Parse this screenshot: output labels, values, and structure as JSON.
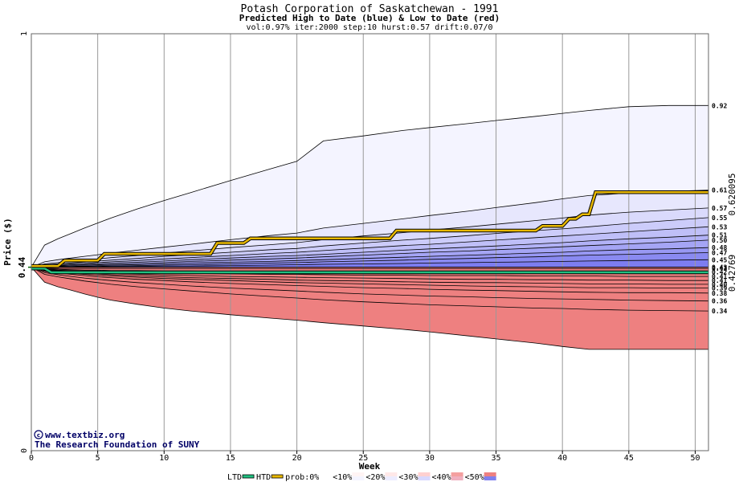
{
  "chart_data": {
    "type": "area",
    "title": "Potash Corporation of Saskatchewan  - 1991",
    "subtitle": "Predicted High to Date (blue) &  Low to Date (red)",
    "params_line": "vol:0.97% iter:2000 step:10 hurst:0.57 drift:0.07/0",
    "xlabel": "Week",
    "ylabel": "Price ($)",
    "xlim": [
      0,
      51
    ],
    "ylim": [
      0,
      1
    ],
    "x_ticks": [
      "0",
      "5",
      "10",
      "15",
      "20",
      "25",
      "30",
      "35",
      "40",
      "45",
      "50"
    ],
    "y_ticks": [
      "0",
      "1"
    ],
    "start_price_label": "0.44",
    "start_price": 0.44,
    "htd_final_label": "0.620095",
    "htd_final": 0.620095,
    "ltd_final_label": "0.42769",
    "ltd_final": 0.42769,
    "band_x": [
      0,
      1,
      2,
      3,
      4,
      5,
      6,
      8,
      10,
      12,
      15,
      18,
      20,
      22,
      25,
      28,
      30,
      33,
      35,
      38,
      40,
      42,
      45,
      48,
      51
    ],
    "blue_percentiles": [
      {
        "label": "0.92",
        "values": [
          0.44,
          0.493,
          0.508,
          0.521,
          0.534,
          0.546,
          0.558,
          0.58,
          0.6,
          0.619,
          0.648,
          0.676,
          0.694,
          0.743,
          0.755,
          0.768,
          0.775,
          0.785,
          0.792,
          0.802,
          0.809,
          0.816,
          0.825,
          0.828,
          0.828
        ]
      },
      {
        "label": "0.61",
        "values": [
          0.44,
          0.453,
          0.458,
          0.462,
          0.466,
          0.47,
          0.474,
          0.481,
          0.488,
          0.495,
          0.506,
          0.516,
          0.522,
          0.534,
          0.545,
          0.556,
          0.564,
          0.575,
          0.583,
          0.595,
          0.604,
          0.612,
          0.618,
          0.622,
          0.625
        ]
      },
      {
        "label": "0.57",
        "values": [
          0.44,
          0.448,
          0.451,
          0.454,
          0.457,
          0.46,
          0.463,
          0.468,
          0.474,
          0.479,
          0.487,
          0.494,
          0.499,
          0.506,
          0.515,
          0.523,
          0.529,
          0.537,
          0.543,
          0.552,
          0.558,
          0.565,
          0.572,
          0.577,
          0.582
        ]
      },
      {
        "label": "0.55",
        "values": [
          0.44,
          0.446,
          0.448,
          0.45,
          0.452,
          0.455,
          0.457,
          0.461,
          0.466,
          0.47,
          0.476,
          0.482,
          0.485,
          0.491,
          0.498,
          0.505,
          0.509,
          0.516,
          0.521,
          0.528,
          0.532,
          0.537,
          0.545,
          0.552,
          0.559
        ]
      },
      {
        "label": "0.53",
        "values": [
          0.44,
          0.444,
          0.446,
          0.448,
          0.449,
          0.451,
          0.453,
          0.456,
          0.46,
          0.463,
          0.468,
          0.473,
          0.476,
          0.48,
          0.486,
          0.492,
          0.495,
          0.501,
          0.505,
          0.511,
          0.515,
          0.519,
          0.525,
          0.531,
          0.537
        ]
      },
      {
        "label": "0.51",
        "values": [
          0.44,
          0.443,
          0.444,
          0.446,
          0.447,
          0.448,
          0.45,
          0.452,
          0.455,
          0.458,
          0.462,
          0.466,
          0.468,
          0.471,
          0.476,
          0.481,
          0.484,
          0.488,
          0.491,
          0.496,
          0.499,
          0.503,
          0.508,
          0.512,
          0.517
        ]
      },
      {
        "label": "0.50",
        "values": [
          0.44,
          0.442,
          0.443,
          0.444,
          0.445,
          0.446,
          0.447,
          0.449,
          0.451,
          0.454,
          0.457,
          0.46,
          0.462,
          0.465,
          0.469,
          0.473,
          0.476,
          0.479,
          0.482,
          0.486,
          0.489,
          0.492,
          0.496,
          0.5,
          0.505
        ]
      },
      {
        "label": "0.48",
        "values": [
          0.44,
          0.441,
          0.442,
          0.442,
          0.443,
          0.444,
          0.445,
          0.446,
          0.448,
          0.45,
          0.452,
          0.454,
          0.456,
          0.458,
          0.461,
          0.464,
          0.466,
          0.469,
          0.471,
          0.474,
          0.476,
          0.479,
          0.482,
          0.484,
          0.487
        ]
      },
      {
        "label": "0.47",
        "values": [
          0.44,
          0.44,
          0.441,
          0.441,
          0.442,
          0.442,
          0.443,
          0.444,
          0.445,
          0.446,
          0.448,
          0.45,
          0.451,
          0.453,
          0.455,
          0.457,
          0.459,
          0.461,
          0.463,
          0.465,
          0.467,
          0.469,
          0.471,
          0.473,
          0.475
        ]
      },
      {
        "label": "0.45",
        "values": [
          0.44,
          0.44,
          0.44,
          0.44,
          0.441,
          0.441,
          0.441,
          0.442,
          0.443,
          0.443,
          0.444,
          0.445,
          0.446,
          0.447,
          0.448,
          0.449,
          0.45,
          0.451,
          0.452,
          0.453,
          0.454,
          0.455,
          0.456,
          0.457,
          0.458
        ]
      },
      {
        "label": "0.43",
        "values": [
          0.44,
          0.44,
          0.44,
          0.44,
          0.44,
          0.44,
          0.44,
          0.44,
          0.44,
          0.44,
          0.44,
          0.44,
          0.44,
          0.44,
          0.44,
          0.44,
          0.44,
          0.44,
          0.44,
          0.44,
          0.44,
          0.44,
          0.44,
          0.44,
          0.44
        ]
      }
    ],
    "red_percentiles": [
      {
        "label": "0.43",
        "values": [
          0.44,
          0.438,
          0.437,
          0.437,
          0.437,
          0.437,
          0.437,
          0.437,
          0.437,
          0.437,
          0.437,
          0.437,
          0.437,
          0.437,
          0.437,
          0.437,
          0.437,
          0.437,
          0.437,
          0.437,
          0.437,
          0.437,
          0.437,
          0.437,
          0.437
        ]
      },
      {
        "label": "0.42",
        "values": [
          0.44,
          0.436,
          0.435,
          0.434,
          0.433,
          0.433,
          0.432,
          0.432,
          0.431,
          0.431,
          0.43,
          0.43,
          0.43,
          0.429,
          0.429,
          0.429,
          0.429,
          0.429,
          0.429,
          0.429,
          0.429,
          0.429,
          0.429,
          0.429,
          0.429
        ]
      },
      {
        "label": "0.41",
        "values": [
          0.44,
          0.435,
          0.433,
          0.432,
          0.43,
          0.429,
          0.428,
          0.427,
          0.426,
          0.425,
          0.424,
          0.423,
          0.423,
          0.422,
          0.421,
          0.421,
          0.42,
          0.42,
          0.42,
          0.419,
          0.419,
          0.419,
          0.418,
          0.418,
          0.418
        ]
      },
      {
        "label": "0.41",
        "values": [
          0.44,
          0.434,
          0.432,
          0.43,
          0.428,
          0.426,
          0.425,
          0.423,
          0.421,
          0.42,
          0.418,
          0.417,
          0.416,
          0.415,
          0.414,
          0.413,
          0.412,
          0.411,
          0.411,
          0.41,
          0.41,
          0.409,
          0.409,
          0.408,
          0.408
        ]
      },
      {
        "label": "0.40",
        "values": [
          0.44,
          0.433,
          0.43,
          0.428,
          0.426,
          0.424,
          0.422,
          0.419,
          0.417,
          0.415,
          0.413,
          0.411,
          0.409,
          0.408,
          0.407,
          0.405,
          0.404,
          0.403,
          0.403,
          0.402,
          0.401,
          0.4,
          0.4,
          0.399,
          0.399
        ]
      },
      {
        "label": "0.39",
        "values": [
          0.44,
          0.432,
          0.428,
          0.426,
          0.423,
          0.421,
          0.419,
          0.416,
          0.413,
          0.411,
          0.408,
          0.405,
          0.403,
          0.402,
          0.4,
          0.398,
          0.397,
          0.395,
          0.394,
          0.393,
          0.392,
          0.391,
          0.391,
          0.39,
          0.39
        ]
      },
      {
        "label": "0.38",
        "values": [
          0.44,
          0.43,
          0.426,
          0.423,
          0.42,
          0.417,
          0.415,
          0.411,
          0.408,
          0.405,
          0.401,
          0.398,
          0.396,
          0.394,
          0.391,
          0.389,
          0.387,
          0.385,
          0.384,
          0.382,
          0.381,
          0.38,
          0.379,
          0.379,
          0.378
        ]
      },
      {
        "label": "0.36",
        "values": [
          0.44,
          0.427,
          0.422,
          0.418,
          0.414,
          0.411,
          0.408,
          0.403,
          0.399,
          0.395,
          0.39,
          0.386,
          0.383,
          0.38,
          0.376,
          0.373,
          0.371,
          0.369,
          0.367,
          0.365,
          0.364,
          0.363,
          0.361,
          0.36,
          0.359
        ]
      },
      {
        "label": "0.34",
        "values": [
          0.44,
          0.423,
          0.417,
          0.412,
          0.407,
          0.403,
          0.399,
          0.393,
          0.388,
          0.383,
          0.376,
          0.37,
          0.366,
          0.362,
          0.357,
          0.353,
          0.35,
          0.347,
          0.345,
          0.342,
          0.341,
          0.339,
          0.337,
          0.336,
          0.335
        ]
      },
      {
        "label": "",
        "values": [
          0.44,
          0.404,
          0.393,
          0.385,
          0.376,
          0.368,
          0.361,
          0.351,
          0.342,
          0.335,
          0.326,
          0.318,
          0.313,
          0.307,
          0.299,
          0.291,
          0.285,
          0.275,
          0.268,
          0.258,
          0.25,
          0.243,
          0.243,
          0.243,
          0.243
        ]
      }
    ],
    "htd_path": {
      "x": [
        0,
        2,
        2.5,
        5,
        5.5,
        13.5,
        14,
        16,
        16.5,
        27,
        27.5,
        38,
        38.5,
        40,
        40.5,
        41,
        41.5,
        42,
        42.5,
        51
      ],
      "y": [
        0.443,
        0.443,
        0.456,
        0.456,
        0.472,
        0.472,
        0.498,
        0.498,
        0.509,
        0.509,
        0.528,
        0.528,
        0.539,
        0.539,
        0.556,
        0.556,
        0.567,
        0.567,
        0.620095,
        0.620095
      ]
    },
    "ltd_path": {
      "x": [
        0,
        1,
        1.5,
        51
      ],
      "y": [
        0.437,
        0.437,
        0.42769,
        0.42769
      ]
    },
    "legend": {
      "ltd": "LTD",
      "htd": "HTD",
      "prob_prefix": "prob:",
      "items": [
        "0%",
        "<10%",
        "<20%",
        "<30%",
        "<40%",
        "<50%"
      ]
    },
    "watermark_url": "www.textbiz.org",
    "watermark_org": "The Research Foundation of SUNY",
    "colors": {
      "htd_line": "#e8b800",
      "ltd_line": "#20c080",
      "blue_outer": "#f4f4ff",
      "blue_inner": "#7070ee",
      "red_outer": "#fff4f4",
      "red_inner": "#ee8080",
      "htd_label": "#b8860b",
      "ltd_label": "#008060",
      "start_label": "#006400"
    }
  }
}
